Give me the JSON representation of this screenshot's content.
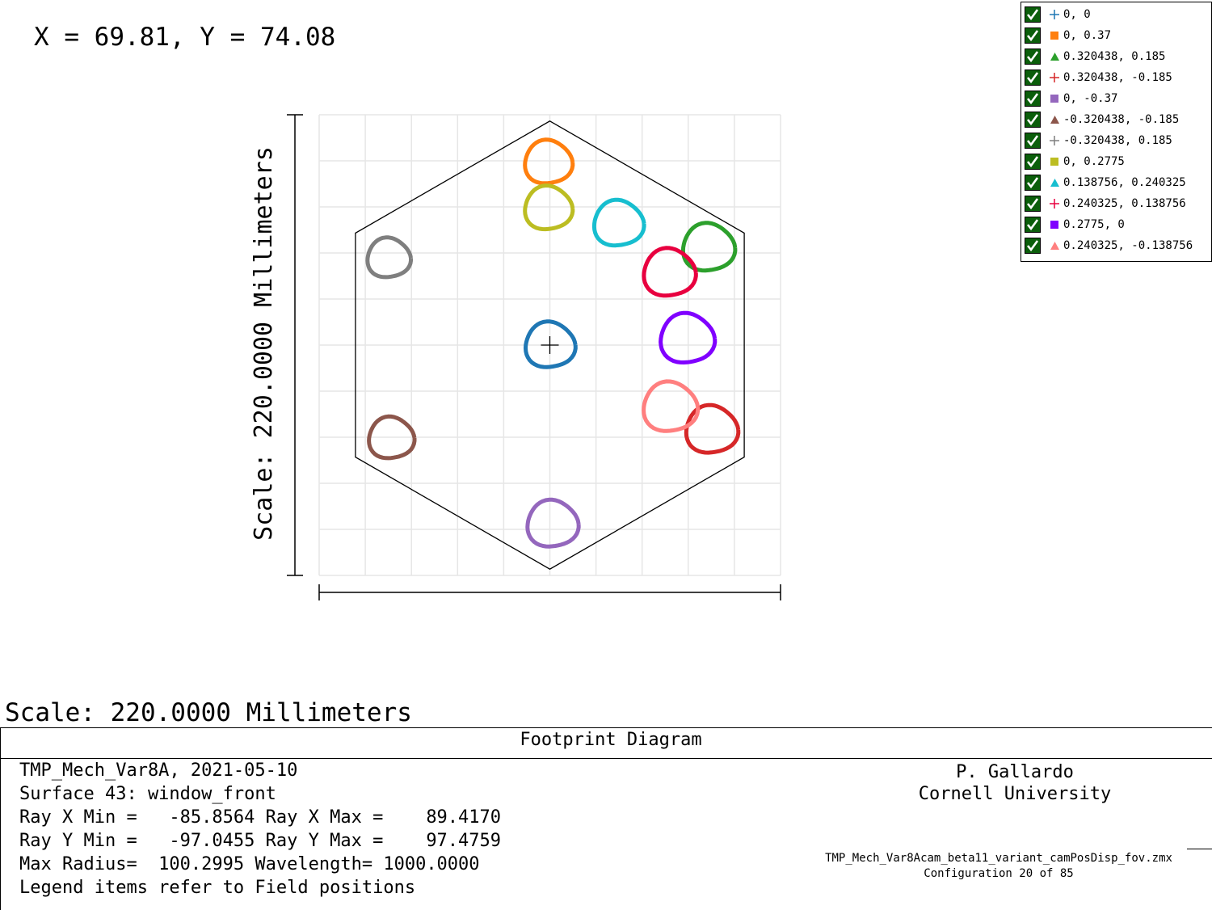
{
  "coord_readout": "X = 69.81, Y = 74.08",
  "scale_label": "Scale: 220.0000 Millimeters",
  "legend": {
    "items": [
      {
        "label": "0, 0",
        "color": "#1f77b4",
        "marker": "plus-icon",
        "checked": true
      },
      {
        "label": "0, 0.37",
        "color": "#ff7f0e",
        "marker": "square-icon",
        "checked": true
      },
      {
        "label": "0.320438, 0.185",
        "color": "#2ca02c",
        "marker": "triangle-icon",
        "checked": true
      },
      {
        "label": "0.320438, -0.185",
        "color": "#d62728",
        "marker": "plus-icon",
        "checked": true
      },
      {
        "label": "0, -0.37",
        "color": "#9467bd",
        "marker": "square-icon",
        "checked": true
      },
      {
        "label": "-0.320438, -0.185",
        "color": "#8c564b",
        "marker": "triangle-icon",
        "checked": true
      },
      {
        "label": "-0.320438, 0.185",
        "color": "#7f7f7f",
        "marker": "plus-icon",
        "checked": true
      },
      {
        "label": "0, 0.2775",
        "color": "#bcbd22",
        "marker": "square-icon",
        "checked": true
      },
      {
        "label": "0.138756, 0.240325",
        "color": "#17becf",
        "marker": "triangle-icon",
        "checked": true
      },
      {
        "label": "0.240325, 0.138756",
        "color": "#e8003f",
        "marker": "plus-icon",
        "checked": true
      },
      {
        "label": "0.2775, 0",
        "color": "#8000ff",
        "marker": "square-icon",
        "checked": true
      },
      {
        "label": "0.240325, -0.138756",
        "color": "#ff7f7f",
        "marker": "triangle-icon",
        "checked": true
      }
    ]
  },
  "chart_data": {
    "type": "scatter",
    "title": "Footprint Diagram",
    "xlim": [
      -110,
      110
    ],
    "ylim": [
      -110,
      110
    ],
    "grid": true,
    "legend_position": "top-right",
    "boundary_hexagon": [
      [
        0,
        107
      ],
      [
        92.7,
        53.5
      ],
      [
        92.7,
        -53.5
      ],
      [
        0,
        -107
      ],
      [
        -92.7,
        -53.5
      ],
      [
        -92.7,
        53.5
      ]
    ],
    "series": [
      {
        "name": "0, 0",
        "color": "#1f77b4",
        "center": [
          0,
          0
        ],
        "radius": 11.5
      },
      {
        "name": "0, 0.37",
        "color": "#ff7f0e",
        "center": [
          -0.8,
          87.3
        ],
        "radius": 11.0
      },
      {
        "name": "0.320438, 0.185",
        "color": "#2ca02c",
        "center": [
          75.6,
          46.6
        ],
        "radius": 12.0
      },
      {
        "name": "0.320438, -0.185",
        "color": "#d62728",
        "center": [
          77.1,
          -40.4
        ],
        "radius": 12.0
      },
      {
        "name": "0, -0.37",
        "color": "#9467bd",
        "center": [
          1.2,
          -85.4
        ],
        "radius": 11.8
      },
      {
        "name": "-0.320438, -0.185",
        "color": "#8c564b",
        "center": [
          -75.7,
          -44.4
        ],
        "radius": 10.5
      },
      {
        "name": "-0.320438, 0.185",
        "color": "#7f7f7f",
        "center": [
          -76.9,
          41.6
        ],
        "radius": 10.0
      },
      {
        "name": "0, 0.2775",
        "color": "#bcbd22",
        "center": [
          -0.8,
          65.4
        ],
        "radius": 11.0
      },
      {
        "name": "0.138756, 0.240325",
        "color": "#17becf",
        "center": [
          32.7,
          58.1
        ],
        "radius": 11.5
      },
      {
        "name": "0.240325, 0.138756",
        "color": "#e8003f",
        "center": [
          56.9,
          34.6
        ],
        "radius": 12.0
      },
      {
        "name": "0.2775, 0",
        "color": "#8000ff",
        "center": [
          65.4,
          3.1
        ],
        "radius": 12.5
      },
      {
        "name": "0.240325, -0.138756",
        "color": "#ff7f7f",
        "center": [
          57.3,
          -29.6
        ],
        "radius": 12.5
      }
    ]
  },
  "title_box": {
    "title": "Footprint Diagram",
    "lines": [
      "TMP_Mech_Var8A, 2021-05-10",
      "Surface 43: window_front",
      "Ray X Min =   -85.8564 Ray X Max =    89.4170",
      "Ray Y Min =   -97.0455 Ray Y Max =    97.4759",
      "Max Radius=  100.2995 Wavelength= 1000.0000",
      "Legend items refer to Field positions"
    ],
    "author": "P. Gallardo",
    "institution": "Cornell University",
    "filename": "TMP_Mech_Var8Acam_beta11_variant_camPosDisp_fov.zmx",
    "configuration": "Configuration 20 of 85"
  }
}
